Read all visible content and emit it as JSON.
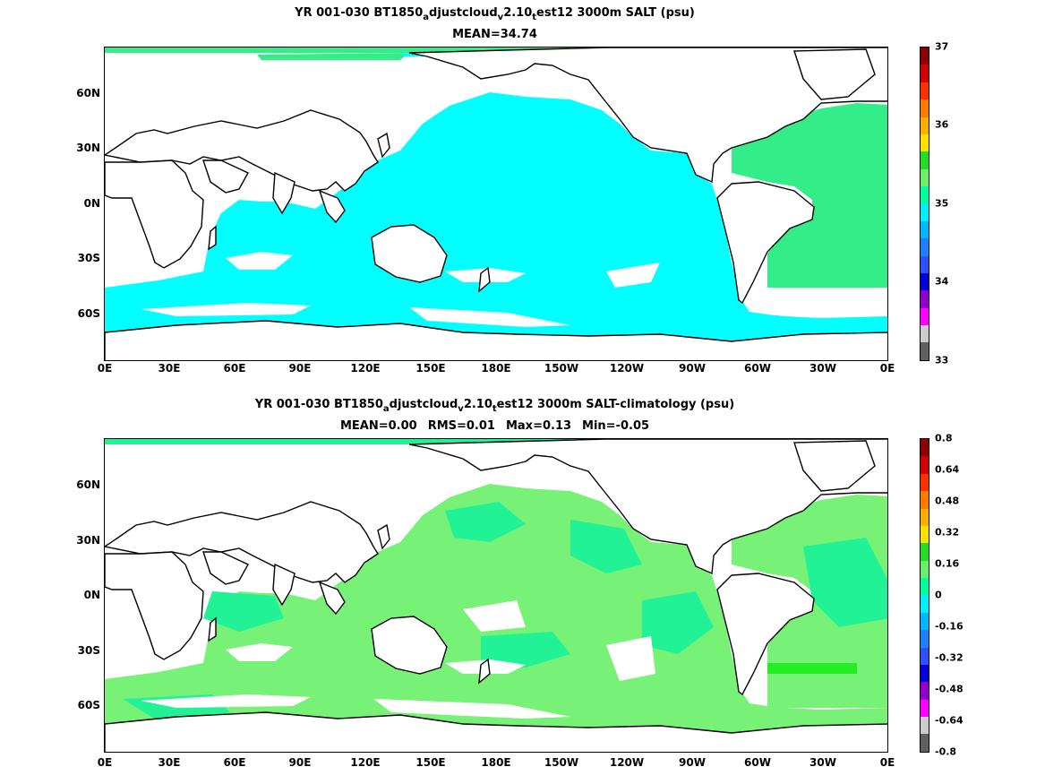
{
  "panels": [
    {
      "id": "salt",
      "title_line1": {
        "a": "YR 001-030 BT1850",
        "s1": "a",
        "b": "djustcloud",
        "s2": "v",
        "c": "2.10",
        "s3": "t",
        "d": "est12 3000m SALT (psu)"
      },
      "stats": [
        "MEAN=34.74"
      ],
      "colorbar_labels": [
        "37",
        "36",
        "35",
        "34",
        "33"
      ],
      "colorbar_colors": [
        "#8b0000",
        "#d40000",
        "#ff3000",
        "#ff7a00",
        "#ffae00",
        "#ffe000",
        "#22dd22",
        "#6aef6a",
        "#00ff9a",
        "#00f0ff",
        "#00b8ff",
        "#1f80ff",
        "#3050ff",
        "#0000dd",
        "#9000c8",
        "#ff00ff",
        "#cccccc",
        "#606060"
      ]
    },
    {
      "id": "salt_anom",
      "title_line1": {
        "a": "YR 001-030 BT1850",
        "s1": "a",
        "b": "djustcloud",
        "s2": "v",
        "c": "2.10",
        "s3": "t",
        "d": "est12 3000m SALT-climatology (psu)"
      },
      "stats": [
        "MEAN=0.00",
        "RMS=0.01",
        "Max=0.13",
        "Min=-0.05"
      ],
      "colorbar_labels": [
        "0.8",
        "0.64",
        "0.48",
        "0.32",
        "0.16",
        "0",
        "-0.16",
        "-0.32",
        "-0.48",
        "-0.64",
        "-0.8"
      ],
      "colorbar_colors": [
        "#8b0000",
        "#d40000",
        "#ff3000",
        "#ff7a00",
        "#ffae00",
        "#ffe000",
        "#22dd22",
        "#6aef6a",
        "#00ff9a",
        "#00f0ff",
        "#00b8ff",
        "#1f80ff",
        "#3050ff",
        "#0000dd",
        "#9000c8",
        "#ff00ff",
        "#cccccc",
        "#606060"
      ]
    }
  ],
  "axes": {
    "y_ticks": [
      "60N",
      "30N",
      "0N",
      "30S",
      "60S"
    ],
    "x_ticks": [
      "0E",
      "30E",
      "60E",
      "90E",
      "120E",
      "150E",
      "180E",
      "150W",
      "120W",
      "90W",
      "60W",
      "30W",
      "0E"
    ]
  },
  "colors": {
    "pacific_salt": "#00ffff",
    "atlantic_salt": "#33ee88",
    "anom_green": "#77f277",
    "anom_teal": "#22f296",
    "anom_bright": "#22ee22",
    "land": "#ffffff",
    "coast": "#000000"
  }
}
